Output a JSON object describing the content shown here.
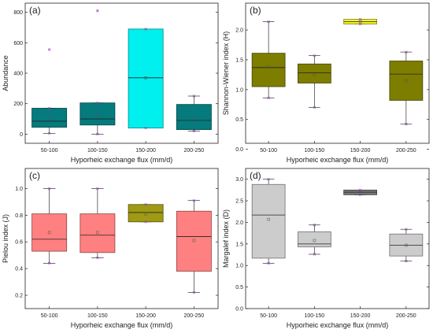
{
  "chart_data": [
    {
      "type": "box",
      "panel_label": "(a)",
      "xlabel": "Hyporheic exchange flux (mm/d)",
      "ylabel": "Abundance",
      "ylim": [
        -60,
        860
      ],
      "yticks": [
        0,
        200,
        400,
        600,
        800
      ],
      "grid": false,
      "categories": [
        "50-100",
        "100-150",
        "150-200",
        "200-250"
      ],
      "box_color": "#057b7d",
      "boxes": [
        {
          "whisker_low": 5,
          "q1": 45,
          "median": 85,
          "q3": 170,
          "whisker_high": 170,
          "mean": 105,
          "outliers": [
            555
          ]
        },
        {
          "whisker_low": 0,
          "q1": 60,
          "median": 100,
          "q3": 205,
          "whisker_high": 205,
          "mean": 115,
          "outliers": [
            810
          ]
        },
        {
          "whisker_low": 40,
          "q1": 40,
          "median": 370,
          "q3": 690,
          "whisker_high": 690,
          "mean": 370,
          "outliers": []
        },
        {
          "whisker_low": 20,
          "q1": 30,
          "median": 90,
          "q3": 195,
          "whisker_high": 250,
          "mean": 105,
          "outliers": []
        }
      ],
      "box_colors": [
        "#057b7d",
        "#057b7d",
        "#00f0f0",
        "#057b7d"
      ]
    },
    {
      "type": "box",
      "panel_label": "(b)",
      "xlabel": "Hyporheic exchange flux (mm/d)",
      "ylabel": "Shannon-Wiener index (H)",
      "ylim": [
        0.1,
        2.45
      ],
      "yticks": [
        0.0,
        0.5,
        1.0,
        1.5,
        2.0
      ],
      "ytick_labels": [
        "0.0",
        "0.5",
        "1.0",
        "1.5",
        "2.0"
      ],
      "grid": false,
      "categories": [
        "50-100",
        "100-150",
        "150-200",
        "200-250"
      ],
      "boxes": [
        {
          "whisker_low": 0.86,
          "q1": 1.05,
          "median": 1.37,
          "q3": 1.61,
          "whisker_high": 2.14,
          "mean": 1.38,
          "outliers": []
        },
        {
          "whisker_low": 0.7,
          "q1": 1.11,
          "median": 1.28,
          "q3": 1.43,
          "whisker_high": 1.57,
          "mean": 1.25,
          "outliers": []
        },
        {
          "whisker_low": 2.1,
          "q1": 2.1,
          "median": 2.14,
          "q3": 2.18,
          "whisker_high": 2.18,
          "mean": 2.14,
          "outliers": []
        },
        {
          "whisker_low": 0.42,
          "q1": 0.82,
          "median": 1.26,
          "q3": 1.48,
          "whisker_high": 1.63,
          "mean": 1.15,
          "outliers": []
        }
      ],
      "box_colors": [
        "#7d7d00",
        "#7d7d00",
        "#f2f22c",
        "#7d7d00"
      ]
    },
    {
      "type": "box",
      "panel_label": "(c)",
      "xlabel": "Hyporheic exchange flux (mm/d)",
      "ylabel": "Pielou index (J)",
      "ylim": [
        0.1,
        1.15
      ],
      "yticks": [
        0.2,
        0.4,
        0.6,
        0.8,
        1.0
      ],
      "ytick_labels": [
        "0.2",
        "0.4",
        "0.6",
        "0.8",
        "1.0"
      ],
      "grid": false,
      "categories": [
        "50-100",
        "100-150",
        "150-200",
        "200-250"
      ],
      "boxes": [
        {
          "whisker_low": 0.44,
          "q1": 0.53,
          "median": 0.62,
          "q3": 0.81,
          "whisker_high": 1.0,
          "mean": 0.67,
          "outliers": []
        },
        {
          "whisker_low": 0.48,
          "q1": 0.52,
          "median": 0.65,
          "q3": 0.81,
          "whisker_high": 1.0,
          "mean": 0.67,
          "outliers": []
        },
        {
          "whisker_low": 0.75,
          "q1": 0.75,
          "median": 0.82,
          "q3": 0.88,
          "whisker_high": 0.88,
          "mean": 0.81,
          "outliers": []
        },
        {
          "whisker_low": 0.22,
          "q1": 0.38,
          "median": 0.64,
          "q3": 0.83,
          "whisker_high": 0.91,
          "mean": 0.61,
          "outliers": []
        }
      ],
      "box_colors": [
        "#ff8080",
        "#ff8080",
        "#9e9a14",
        "#ff8080"
      ]
    },
    {
      "type": "box",
      "panel_label": "(d)",
      "xlabel": "Hyporheic exchange flux (mm/d)",
      "ylabel": "Margalef index (D)",
      "ylim": [
        0.0,
        3.25
      ],
      "yticks": [
        0.0,
        0.5,
        1.0,
        1.5,
        2.0,
        2.5,
        3.0
      ],
      "ytick_labels": [
        "0.0",
        "0.5",
        "1.0",
        "1.5",
        "2.0",
        "2.5",
        "3.0"
      ],
      "grid": false,
      "categories": [
        "50-100",
        "100-150",
        "150-200",
        "200-250"
      ],
      "boxes": [
        {
          "whisker_low": 1.05,
          "q1": 1.17,
          "median": 2.17,
          "q3": 2.88,
          "whisker_high": 3.0,
          "mean": 2.07,
          "outliers": []
        },
        {
          "whisker_low": 1.26,
          "q1": 1.43,
          "median": 1.5,
          "q3": 1.78,
          "whisker_high": 1.94,
          "mean": 1.58,
          "outliers": []
        },
        {
          "whisker_low": 2.64,
          "q1": 2.64,
          "median": 2.7,
          "q3": 2.75,
          "whisker_high": 2.75,
          "mean": 2.69,
          "outliers": []
        },
        {
          "whisker_low": 1.1,
          "q1": 1.22,
          "median": 1.47,
          "q3": 1.73,
          "whisker_high": 1.84,
          "mean": 1.47,
          "outliers": []
        }
      ],
      "box_colors": [
        "#cccccc",
        "#cccccc",
        "#777777",
        "#cccccc"
      ]
    }
  ]
}
